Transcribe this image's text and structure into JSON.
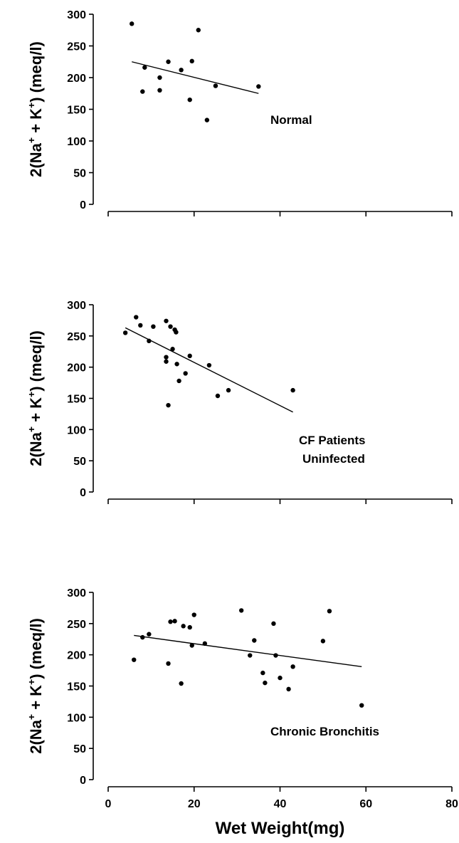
{
  "chart_data": [
    {
      "type": "scatter",
      "ylabel": {
        "pre": "2(Na",
        "sup1": "+",
        "mid": " + K",
        "sup2": "+",
        "post": ") (meq/l)"
      },
      "ylim": [
        0,
        300
      ],
      "yticks": [
        0,
        50,
        100,
        150,
        200,
        250,
        300
      ],
      "xlim": [
        0,
        80
      ],
      "xticks_shown": false,
      "annotation": [
        "Normal"
      ],
      "points": [
        [
          5.5,
          285
        ],
        [
          8.5,
          216
        ],
        [
          8,
          178
        ],
        [
          12,
          200
        ],
        [
          12,
          180
        ],
        [
          14,
          225
        ],
        [
          17,
          212
        ],
        [
          19,
          165
        ],
        [
          19.5,
          226
        ],
        [
          21,
          275
        ],
        [
          23,
          133
        ],
        [
          25,
          187
        ],
        [
          35,
          186
        ]
      ],
      "trendline": [
        [
          5.5,
          225
        ],
        [
          35,
          175
        ]
      ]
    },
    {
      "type": "scatter",
      "ylabel": {
        "pre": "2(Na",
        "sup1": "+",
        "mid": " + K",
        "sup2": "+",
        "post": ") (meq/l)"
      },
      "ylim": [
        0,
        300
      ],
      "yticks": [
        0,
        50,
        100,
        150,
        200,
        250,
        300
      ],
      "xlim": [
        0,
        80
      ],
      "xticks_shown": false,
      "annotation": [
        "CF Patients",
        "Uninfected"
      ],
      "points": [
        [
          4,
          255
        ],
        [
          6.5,
          280
        ],
        [
          7.5,
          267
        ],
        [
          9.5,
          242
        ],
        [
          10.5,
          265
        ],
        [
          13.5,
          274
        ],
        [
          13.5,
          216
        ],
        [
          13.5,
          209
        ],
        [
          14,
          139
        ],
        [
          14.5,
          265
        ],
        [
          15,
          229
        ],
        [
          15.5,
          260
        ],
        [
          15.8,
          256
        ],
        [
          16,
          205
        ],
        [
          16.5,
          178
        ],
        [
          18,
          190
        ],
        [
          19,
          218
        ],
        [
          23.5,
          203
        ],
        [
          25.5,
          154
        ],
        [
          28,
          163
        ],
        [
          43,
          163
        ]
      ],
      "trendline": [
        [
          4,
          263
        ],
        [
          43,
          128
        ]
      ]
    },
    {
      "type": "scatter",
      "ylabel": {
        "pre": "2(Na",
        "sup1": "+",
        "mid": " + K",
        "sup2": "+",
        "post": ") (meq/l)"
      },
      "xlabel": "Wet Weight(mg)",
      "ylim": [
        0,
        300
      ],
      "yticks": [
        0,
        50,
        100,
        150,
        200,
        250,
        300
      ],
      "xlim": [
        0,
        80
      ],
      "xticks": [
        0,
        20,
        40,
        60,
        80
      ],
      "xticks_shown": true,
      "annotation": [
        "Chronic Bronchitis"
      ],
      "points": [
        [
          6,
          192
        ],
        [
          8,
          228
        ],
        [
          9.5,
          233
        ],
        [
          14,
          186
        ],
        [
          14.5,
          253
        ],
        [
          15.5,
          254
        ],
        [
          17,
          154
        ],
        [
          17.5,
          246
        ],
        [
          19,
          244
        ],
        [
          19.5,
          215
        ],
        [
          20,
          264
        ],
        [
          22.5,
          218
        ],
        [
          31,
          271
        ],
        [
          33,
          199
        ],
        [
          34,
          223
        ],
        [
          36,
          171
        ],
        [
          36.5,
          155
        ],
        [
          38.5,
          250
        ],
        [
          39,
          199
        ],
        [
          40,
          163
        ],
        [
          42,
          145
        ],
        [
          43,
          181
        ],
        [
          50,
          222
        ],
        [
          51.5,
          270
        ],
        [
          59,
          119
        ]
      ],
      "trendline": [
        [
          6,
          231
        ],
        [
          59,
          181
        ]
      ]
    }
  ]
}
